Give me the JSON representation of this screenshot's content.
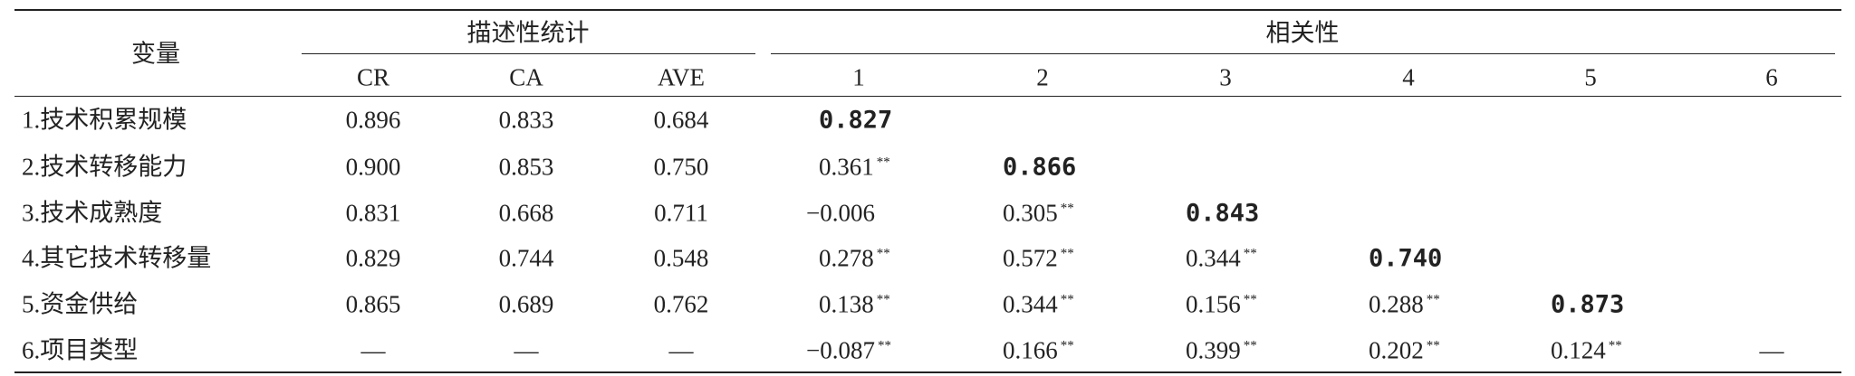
{
  "header": {
    "variable": "变量",
    "group1": "描述性统计",
    "group2": "相关性",
    "columns": [
      "CR",
      "CA",
      "AVE",
      "1",
      "2",
      "3",
      "4",
      "5",
      "6"
    ]
  },
  "table": {
    "rows": [
      {
        "label": "1.技术积累规模",
        "stats": [
          "0.896",
          "0.833",
          "0.684"
        ],
        "corr": [
          {
            "value": "0.827"
          }
        ]
      },
      {
        "label": "2.技术转移能力",
        "stats": [
          "0.900",
          "0.853",
          "0.750"
        ],
        "corr": [
          {
            "value": "0.361",
            "sig": "**"
          },
          {
            "value": "0.866"
          }
        ]
      },
      {
        "label": "3.技术成熟度",
        "stats": [
          "0.831",
          "0.668",
          "0.711"
        ],
        "corr": [
          {
            "value": "−0.006"
          },
          {
            "value": "0.305",
            "sig": "**"
          },
          {
            "value": "0.843"
          }
        ]
      },
      {
        "label": "4.其它技术转移量",
        "stats": [
          "0.829",
          "0.744",
          "0.548"
        ],
        "corr": [
          {
            "value": "0.278",
            "sig": "**"
          },
          {
            "value": "0.572",
            "sig": "**"
          },
          {
            "value": "0.344",
            "sig": "**"
          },
          {
            "value": "0.740"
          }
        ]
      },
      {
        "label": "5.资金供给",
        "stats": [
          "0.865",
          "0.689",
          "0.762"
        ],
        "corr": [
          {
            "value": "0.138",
            "sig": "**"
          },
          {
            "value": "0.344",
            "sig": "**"
          },
          {
            "value": "0.156",
            "sig": "**"
          },
          {
            "value": "0.288",
            "sig": "**"
          },
          {
            "value": "0.873"
          }
        ]
      },
      {
        "label": "6.项目类型",
        "stats": [
          "—",
          "—",
          "—"
        ],
        "corr": [
          {
            "value": "−0.087",
            "sig": "**"
          },
          {
            "value": "0.166",
            "sig": "**"
          },
          {
            "value": "0.399",
            "sig": "**"
          },
          {
            "value": "0.202",
            "sig": "**"
          },
          {
            "value": "0.124",
            "sig": "**"
          },
          {
            "value": "—"
          }
        ]
      }
    ]
  }
}
